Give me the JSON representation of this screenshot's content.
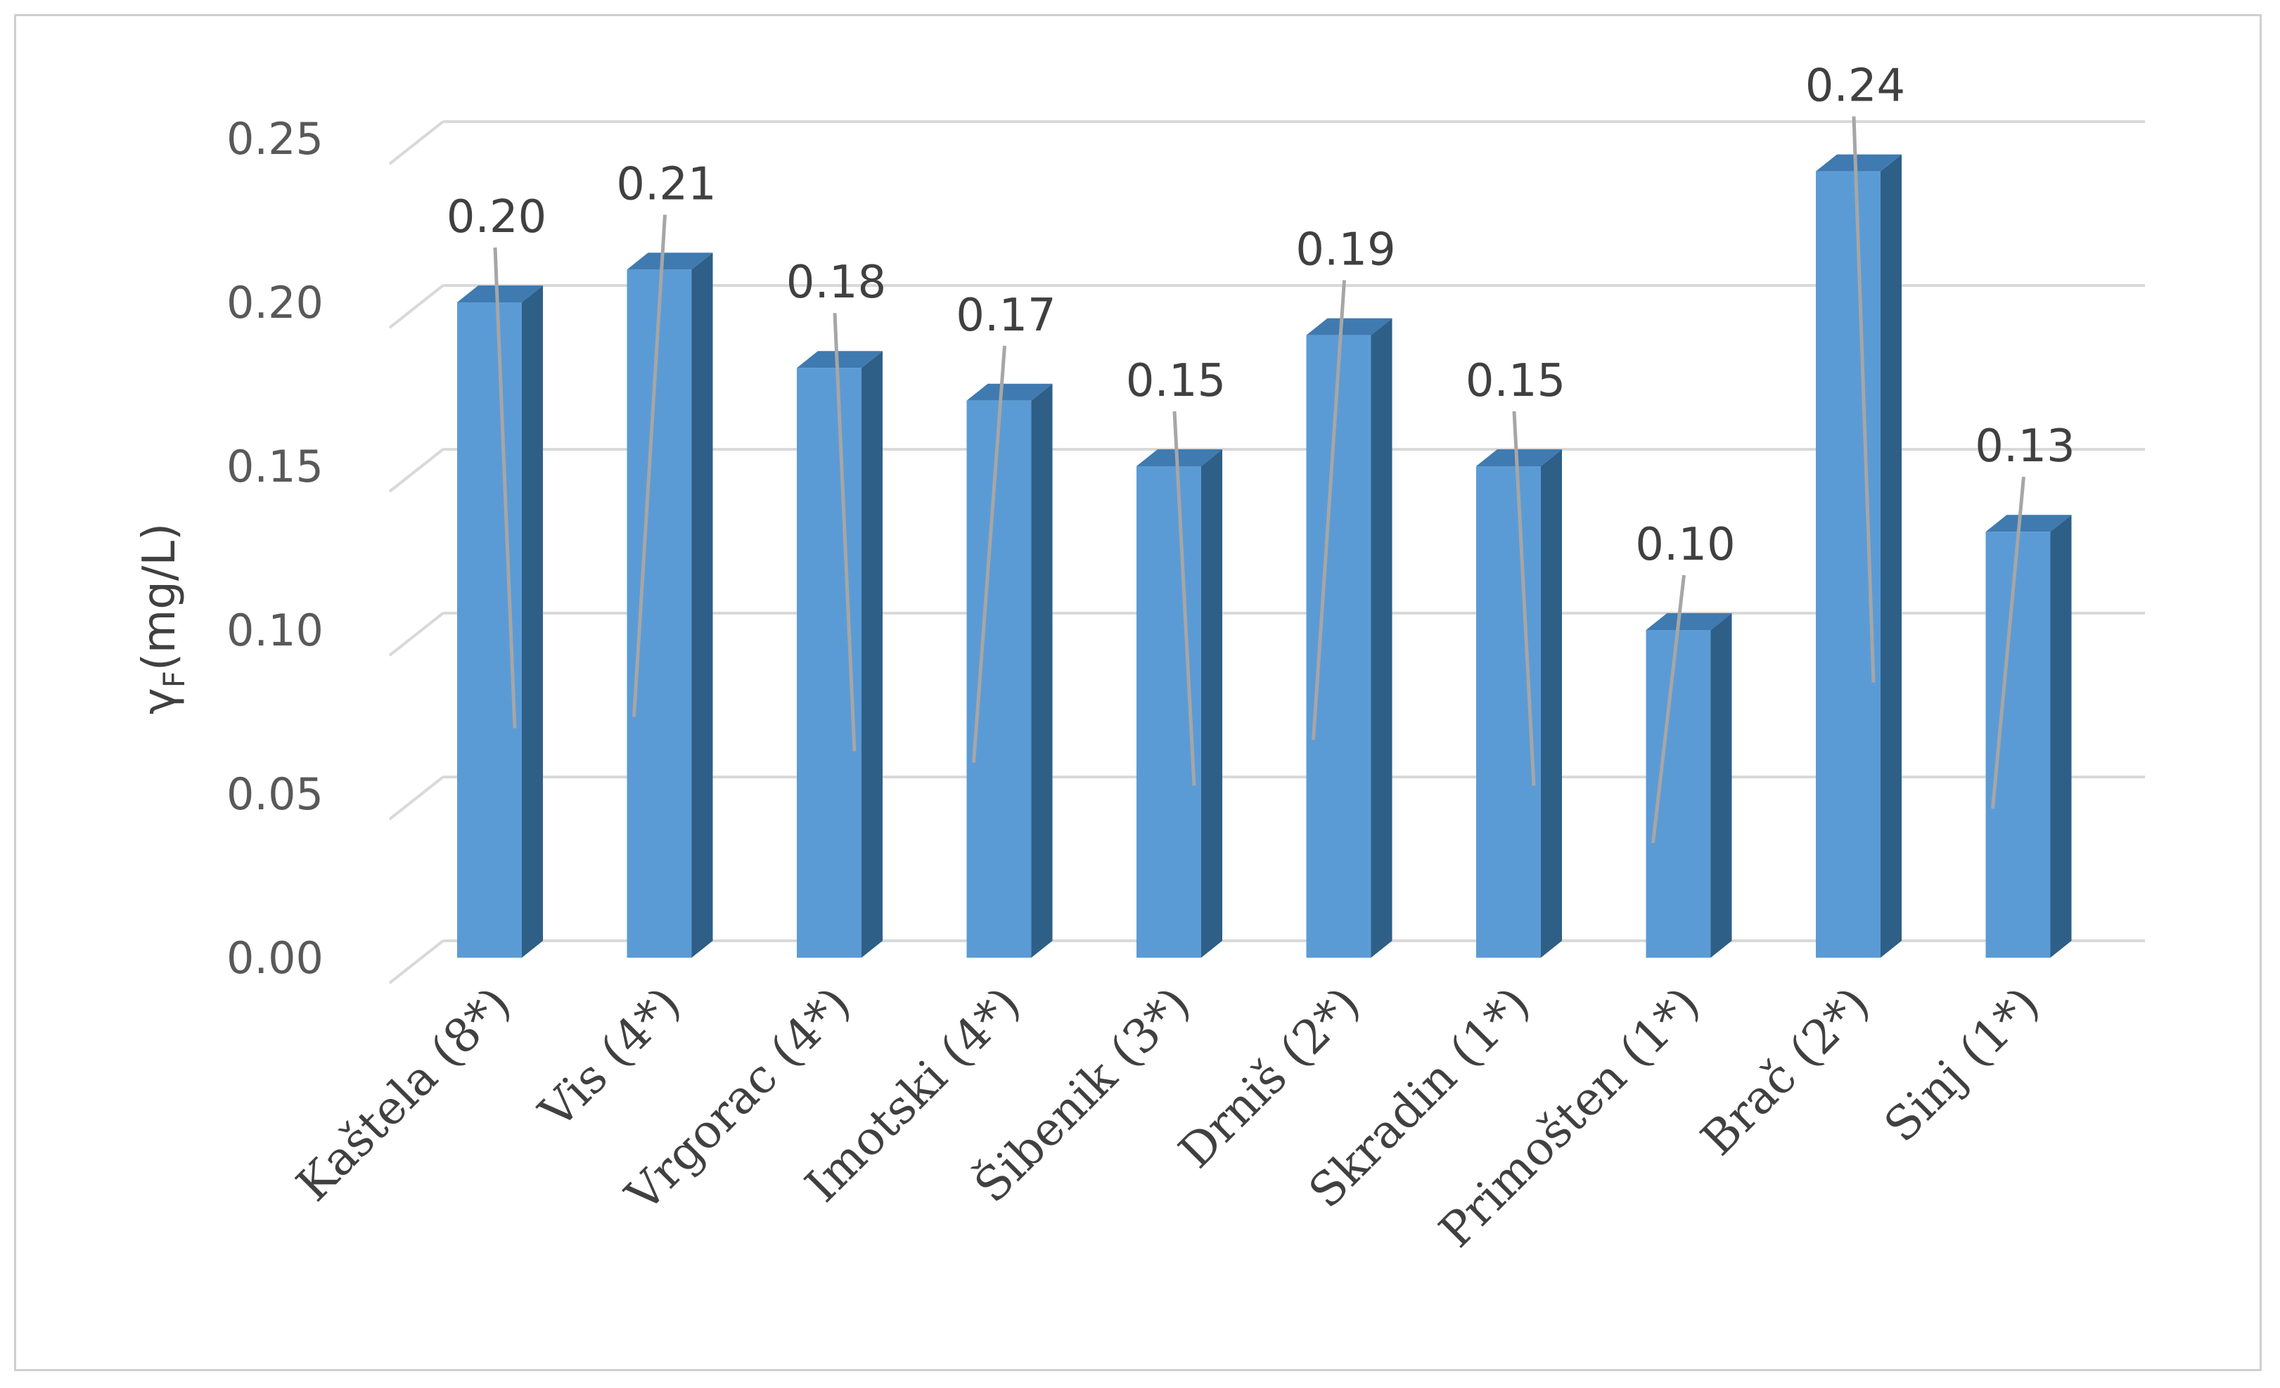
{
  "chart_data": {
    "type": "bar",
    "categories": [
      "Kaštela (8*)",
      "Vis (4*)",
      "Vrgorac (4*)",
      "Imotski (4*)",
      "Šibenik (3*)",
      "Drniš (2*)",
      "Skradin (1*)",
      "Primošten (1*)",
      "Brač (2*)",
      "Sinj (1*)"
    ],
    "values": [
      0.2,
      0.21,
      0.18,
      0.17,
      0.15,
      0.19,
      0.15,
      0.1,
      0.24,
      0.13
    ],
    "data_labels": [
      "0.20",
      "0.21",
      "0.18",
      "0.17",
      "0.15",
      "0.19",
      "0.15",
      "0.10",
      "0.24",
      "0.13"
    ],
    "ylabel_main": "γ",
    "ylabel_sub": "F",
    "ylabel_rest": "(mg/L)",
    "ylim": [
      0,
      0.25
    ],
    "yticks": [
      "0.00",
      "0.05",
      "0.10",
      "0.15",
      "0.20",
      "0.25"
    ],
    "grid": true,
    "style": "3d-column",
    "colors": {
      "bar_front": "#5b9bd5",
      "bar_side": "#2e5f87",
      "bar_top": "#3f7ab0",
      "grid": "#d9d9d9",
      "leader": "#a6a6a6"
    }
  }
}
